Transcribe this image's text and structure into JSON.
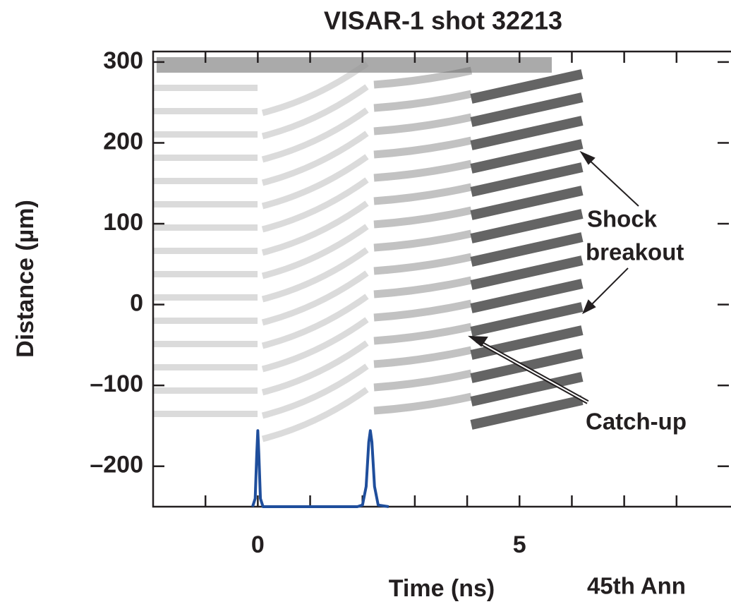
{
  "chart_data": {
    "type": "line",
    "title": "VISAR-1 shot 32213",
    "x_label": "Time (ns)",
    "y_label": "Distance (µm)",
    "annotations": [
      "Shock",
      "breakout",
      "Catch-up",
      "45th Ann"
    ],
    "xlim": [
      -2,
      9
    ],
    "ylim": [
      -250,
      313
    ],
    "xticks": [
      0,
      5
    ],
    "xminorticks": [
      -1,
      1,
      2,
      3,
      4,
      6,
      7,
      8
    ],
    "yticks": [
      300,
      200,
      100,
      0,
      {
        "value": -100,
        "label": "–100"
      },
      {
        "value": -200,
        "label": "–200"
      }
    ],
    "series": [
      {
        "color": "#1f4e9c",
        "x": [
          -0.1,
          -0.05,
          -0.02,
          0,
          0.02,
          0.05,
          0.1,
          0.2,
          1.9,
          2.0,
          2.07,
          2.12,
          2.15,
          2.18,
          2.23,
          2.3,
          2.5
        ],
        "values": [
          -250,
          -240,
          -185,
          -156,
          -185,
          -240,
          -250,
          -250,
          -250,
          -248,
          -225,
          -170,
          -156,
          -170,
          -225,
          -248,
          -250
        ]
      }
    ]
  }
}
